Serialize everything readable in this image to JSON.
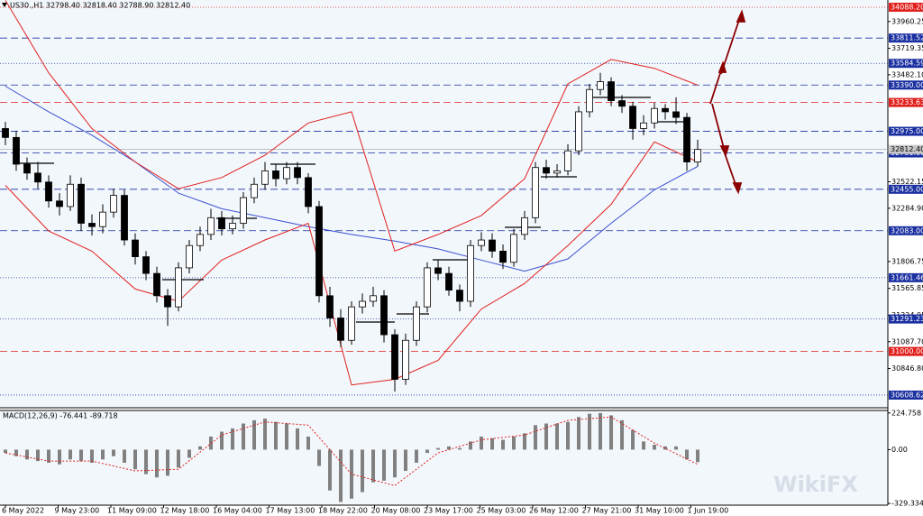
{
  "chart_data": {
    "type": "candlestick",
    "title": "US30.,H1  32798.40 32818.40 32788.90 32812.40",
    "xlim": [
      -0.5,
      81.58
    ],
    "ylim": [
      30495,
      34153
    ],
    "open": [
      33000,
      32920,
      32680,
      32600,
      32520,
      32350,
      32300,
      32500,
      32150,
      32120,
      32250,
      32400,
      32000,
      31850,
      31700,
      31500,
      31400,
      31750,
      31950,
      32050,
      32200,
      32100,
      32150,
      32380,
      32500,
      32620,
      32550,
      32650,
      32560,
      32300,
      31500,
      31300,
      31100,
      31400,
      31450,
      31500,
      31150,
      30750,
      31100,
      31400,
      31750,
      31700,
      31550,
      31450,
      31950,
      32000,
      31900,
      31800,
      32050,
      32200,
      32650,
      32600,
      32620,
      32800,
      33150,
      33350,
      33420,
      33250,
      33200,
      33000,
      33050,
      33180,
      33150,
      33100,
      32700
    ],
    "high": [
      33060,
      32980,
      32740,
      32700,
      32580,
      32420,
      32580,
      32560,
      32230,
      32320,
      32460,
      32450,
      32060,
      31900,
      31760,
      31560,
      31800,
      32000,
      32120,
      32280,
      32260,
      32220,
      32430,
      32560,
      32700,
      32680,
      32700,
      32700,
      32600,
      32350,
      31580,
      31380,
      31450,
      31520,
      31580,
      31550,
      31200,
      31160,
      31450,
      31800,
      31820,
      31760,
      31600,
      32000,
      32070,
      32060,
      31960,
      32100,
      32260,
      32700,
      32720,
      32680,
      32860,
      33200,
      33400,
      33500,
      33460,
      33300,
      33240,
      33120,
      33230,
      33220,
      33280,
      33140,
      32900
    ],
    "low": [
      32850,
      32620,
      32540,
      32460,
      32290,
      32220,
      32260,
      32080,
      32040,
      32060,
      32200,
      31950,
      31780,
      31640,
      31440,
      31230,
      31360,
      31700,
      31900,
      32000,
      32040,
      32050,
      32100,
      32330,
      32450,
      32480,
      32500,
      32500,
      32240,
      31440,
      31220,
      31040,
      31060,
      31340,
      31400,
      31080,
      30640,
      30700,
      31050,
      31350,
      31640,
      31500,
      31360,
      31400,
      31900,
      31840,
      31740,
      31760,
      32000,
      32150,
      32550,
      32560,
      32580,
      32760,
      33100,
      33300,
      33200,
      33140,
      32900,
      32940,
      33000,
      33080,
      33040,
      32620,
      32660
    ],
    "close": [
      32920,
      32680,
      32600,
      32520,
      32350,
      32300,
      32500,
      32150,
      32120,
      32250,
      32400,
      32000,
      31850,
      31700,
      31500,
      31400,
      31750,
      31950,
      32050,
      32200,
      32100,
      32150,
      32380,
      32500,
      32620,
      32550,
      32650,
      32560,
      32300,
      31500,
      31300,
      31100,
      31400,
      31450,
      31500,
      31150,
      30750,
      31100,
      31400,
      31750,
      31700,
      31550,
      31450,
      31950,
      32000,
      31900,
      31800,
      32050,
      32200,
      32650,
      32600,
      32620,
      32800,
      33150,
      33350,
      33420,
      33250,
      33200,
      33000,
      33050,
      33180,
      33150,
      33100,
      32700,
      32812.4
    ],
    "up_color": "#ffffff",
    "down_color": "#000000",
    "indicators": [
      {
        "color": "#3a4fd0",
        "x": [
          0,
          4,
          8,
          12,
          16,
          20,
          24,
          28,
          32,
          36,
          40,
          44,
          48,
          52,
          56,
          60,
          64
        ],
        "values": [
          33380,
          33150,
          32940,
          32700,
          32420,
          32280,
          32200,
          32120,
          32050,
          31990,
          31920,
          31820,
          31720,
          31830,
          32150,
          32450,
          32660
        ]
      },
      {
        "color": "#e0201c",
        "x": [
          0,
          4,
          8,
          12,
          16,
          20,
          24,
          28,
          32,
          36,
          40,
          44,
          48,
          52,
          56,
          60,
          64
        ],
        "values": [
          34150,
          33500,
          33000,
          32700,
          32460,
          32560,
          32760,
          33050,
          33150,
          31900,
          32050,
          32220,
          32550,
          33400,
          33620,
          33540,
          33390
        ]
      },
      {
        "color": "#e0201c",
        "x": [
          0,
          4,
          8,
          12,
          16,
          20,
          24,
          28,
          32,
          36,
          40,
          44,
          48,
          52,
          56,
          60,
          64
        ],
        "values": [
          32490,
          32080,
          31900,
          31560,
          31450,
          31820,
          32000,
          32150,
          30700,
          30750,
          30920,
          31380,
          31610,
          31950,
          32320,
          32880,
          32700
        ]
      }
    ],
    "yticks": [
      33960.25,
      33719.35,
      {
        "value": 33482.1,
        "label": "33482.10"
      },
      32522.15,
      {
        "value": 32284.9,
        "label": "32284.90"
      },
      31806.75,
      31565.85,
      31324.95,
      {
        "value": 31087.7,
        "label": "31087.70"
      },
      {
        "value": 30846.8,
        "label": "30846.80"
      }
    ],
    "levels": [
      {
        "value": 34088.2,
        "label": "34088.20",
        "color": "#e0201c",
        "style": "dotted"
      },
      {
        "value": 33811.52,
        "label": "33811.52",
        "color": "#1a2fa0",
        "style": "dashed"
      },
      {
        "value": 33584.59,
        "label": "33584.59",
        "color": "#1a2fa0",
        "style": "dotted"
      },
      {
        "value": 33390,
        "label": "33390.00",
        "color": "#1a2fa0",
        "style": "dashed"
      },
      {
        "value": 33233.63,
        "label": "33233.63",
        "color": "#e0201c",
        "style": "dashed"
      },
      {
        "value": 32975,
        "label": "32975.00",
        "color": "#1a2fa0",
        "style": "dashed"
      },
      {
        "value": 32781,
        "label": "32781.00",
        "color": "#1a2fa0",
        "style": "dashed"
      },
      {
        "value": 32455,
        "label": "32455.00",
        "color": "#1a2fa0",
        "style": "dashed"
      },
      {
        "value": 32083,
        "label": "32083.00",
        "color": "#1a2fa0",
        "style": "dashed"
      },
      {
        "value": 31661.46,
        "label": "31661.46",
        "color": "#1a2fa0",
        "style": "dotted"
      },
      {
        "value": 31291.23,
        "label": "31291.23",
        "color": "#1a2fa0",
        "style": "dotted"
      },
      {
        "value": 31000,
        "label": "31000.00",
        "color": "#e0201c",
        "style": "dashed"
      },
      {
        "value": 30608.62,
        "label": "30608.62",
        "color": "#1a2fa0",
        "style": "dotted"
      }
    ],
    "current_price": {
      "value": 32812.4,
      "label": "32812.40"
    },
    "xticks": [
      {
        "value": 0,
        "label": "6 May 2022"
      },
      {
        "value": 4.875,
        "label": "9 May 23:00"
      },
      {
        "value": 9.75,
        "label": "11 May 09:00"
      },
      {
        "value": 14.625,
        "label": "12 May 18:00"
      },
      {
        "value": 19.5,
        "label": "16 May 04:00"
      },
      {
        "value": 24.375,
        "label": "17 May 13:00"
      },
      {
        "value": 29.25,
        "label": "18 May 22:00"
      },
      {
        "value": 34.125,
        "label": "20 May 08:00"
      },
      {
        "value": 39,
        "label": "23 May 17:00"
      },
      {
        "value": 43.875,
        "label": "25 May 03:00"
      },
      {
        "value": 48.75,
        "label": "26 May 12:00"
      },
      {
        "value": 53.625,
        "label": "27 May 21:00"
      },
      {
        "value": 58.5,
        "label": "31 May 10:00"
      },
      {
        "value": 63.375,
        "label": "1 Jun 19:00"
      }
    ],
    "macd": {
      "title": "MACD(12,26,9) -76.441 -89.718",
      "ylim": [
        -340,
        240
      ],
      "yticks": [
        224.758,
        {
          "value": 0,
          "label": "0.00"
        },
        -329.334
      ],
      "color": "#808080",
      "histogram": [
        -20,
        -40,
        -60,
        -70,
        -80,
        -90,
        -60,
        -70,
        -80,
        -60,
        -40,
        -80,
        -120,
        -150,
        -170,
        -160,
        -110,
        -50,
        20,
        80,
        110,
        130,
        160,
        180,
        190,
        170,
        160,
        130,
        80,
        -100,
        -250,
        -320,
        -300,
        -260,
        -200,
        -190,
        -170,
        -130,
        -80,
        -20,
        10,
        20,
        10,
        50,
        80,
        70,
        60,
        80,
        100,
        150,
        160,
        160,
        170,
        200,
        220,
        224,
        210,
        180,
        120,
        50,
        30,
        20,
        20,
        -60,
        -76.4
      ],
      "signal": {
        "color": "#e0201c",
        "x": [
          0,
          4,
          8,
          12,
          16,
          20,
          24,
          28,
          32,
          36,
          40,
          44,
          48,
          52,
          56,
          60,
          64
        ],
        "values": [
          -20,
          -70,
          -70,
          -130,
          -120,
          90,
          170,
          150,
          -150,
          -220,
          -20,
          60,
          90,
          180,
          200,
          40,
          -89.7
        ]
      }
    },
    "watermark": "WikiFX"
  }
}
